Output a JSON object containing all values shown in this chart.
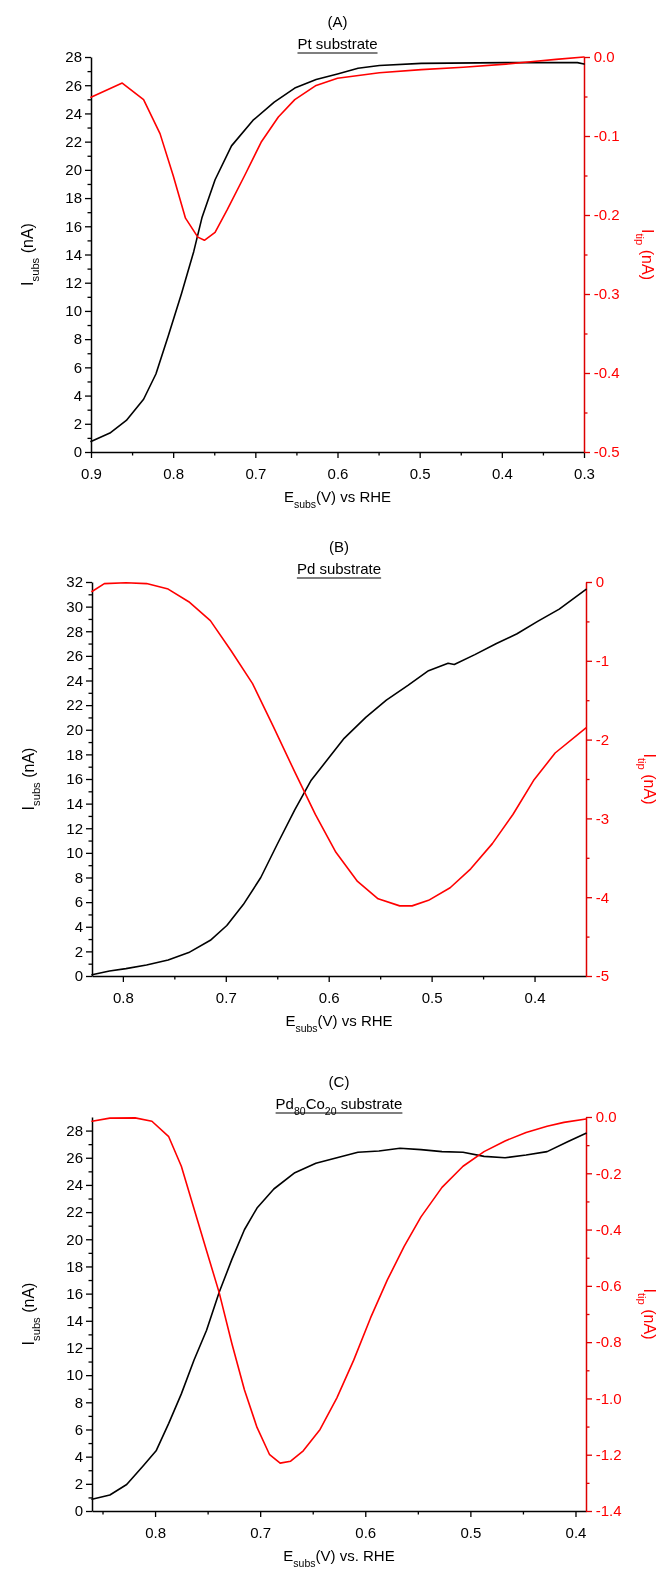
{
  "chart_data": [
    {
      "type": "line",
      "title": "(A)",
      "subtitle": "Pt substrate",
      "xlabel": "E$_{subs}$(V) vs RHE",
      "ylabel": "I$_{subs}$ (nA)",
      "y2label": "I$_{tip}$ (nA)",
      "xlim": [
        0.9,
        0.3
      ],
      "ylim": [
        0,
        28
      ],
      "y2lim": [
        -0.5,
        0
      ],
      "xticks": [
        0.9,
        {
          "value": 0.85,
          "label": null
        },
        0.8,
        {
          "value": 0.75,
          "label": null
        },
        0.7,
        {
          "value": 0.65,
          "label": null
        },
        0.6,
        {
          "value": 0.55,
          "label": null
        },
        0.5,
        {
          "value": 0.45,
          "label": null
        },
        0.4,
        {
          "value": 0.35,
          "label": null
        },
        0.3
      ],
      "yticks": [
        0,
        {
          "value": 1,
          "label": null
        },
        2,
        {
          "value": 3,
          "label": null
        },
        4,
        {
          "value": 5,
          "label": null
        },
        6,
        {
          "value": 7,
          "label": null
        },
        8,
        {
          "value": 9,
          "label": null
        },
        10,
        {
          "value": 11,
          "label": null
        },
        12,
        {
          "value": 13,
          "label": null
        },
        14,
        {
          "value": 15,
          "label": null
        },
        16,
        {
          "value": 17,
          "label": null
        },
        18,
        {
          "value": 19,
          "label": null
        },
        20,
        {
          "value": 21,
          "label": null
        },
        22,
        {
          "value": 23,
          "label": null
        },
        24,
        {
          "value": 25,
          "label": null
        },
        26,
        {
          "value": 27,
          "label": null
        },
        28
      ],
      "y2ticks": [
        {
          "value": 0,
          "label": "0.0"
        },
        {
          "value": -0.05,
          "label": null
        },
        -0.1,
        {
          "value": -0.15,
          "label": null
        },
        -0.2,
        {
          "value": -0.25,
          "label": null
        },
        -0.3,
        {
          "value": -0.35,
          "label": null
        },
        -0.4,
        {
          "value": -0.45,
          "label": null
        },
        -0.5
      ],
      "series": [
        {
          "color": "#000000",
          "x": [
            0.9,
            0.877,
            0.857,
            0.836,
            0.821,
            0.806,
            0.79,
            0.775,
            0.765,
            0.749,
            0.729,
            0.703,
            0.677,
            0.652,
            0.626,
            0.6,
            0.575,
            0.549,
            0.498,
            0.395,
            0.308,
            0.3
          ],
          "values": [
            0.75,
            1.34,
            2.24,
            3.74,
            5.53,
            8.22,
            11.2,
            14.2,
            16.6,
            19.3,
            21.7,
            23.5,
            24.8,
            25.8,
            26.4,
            26.8,
            27.2,
            27.4,
            27.55,
            27.6,
            27.6,
            27.5
          ]
        },
        {
          "color": "#ff0000",
          "axis": "y2",
          "x": [
            0.9,
            0.862,
            0.836,
            0.816,
            0.8,
            0.785,
            0.77,
            0.762,
            0.749,
            0.734,
            0.713,
            0.693,
            0.672,
            0.652,
            0.626,
            0.6,
            0.549,
            0.498,
            0.447,
            0.395,
            0.365,
            0.334,
            0.3
          ],
          "values": [
            -0.051,
            -0.033,
            -0.054,
            -0.097,
            -0.15,
            -0.204,
            -0.228,
            -0.232,
            -0.222,
            -0.193,
            -0.15,
            -0.108,
            -0.076,
            -0.054,
            -0.036,
            -0.027,
            -0.02,
            -0.016,
            -0.013,
            -0.009,
            -0.006,
            -0.003,
            0
          ]
        }
      ]
    },
    {
      "type": "line",
      "title": "(B)",
      "subtitle": "Pd substrate",
      "xlabel": "E$_{subs}$(V) vs RHE",
      "ylabel": "I$_{subs}$ (nA)",
      "y2label": "I$_{tip}$ (nA)",
      "xlim": [
        0.83,
        0.35
      ],
      "ylim": [
        0,
        32
      ],
      "y2lim": [
        -5,
        0
      ],
      "xticks": [
        0.8,
        {
          "value": 0.75,
          "label": null
        },
        0.7,
        {
          "value": 0.65,
          "label": null
        },
        0.6,
        {
          "value": 0.55,
          "label": null
        },
        0.5,
        {
          "value": 0.45,
          "label": null
        },
        0.4
      ],
      "yticks": [
        0,
        {
          "value": 1,
          "label": null
        },
        2,
        {
          "value": 3,
          "label": null
        },
        4,
        {
          "value": 5,
          "label": null
        },
        6,
        {
          "value": 7,
          "label": null
        },
        8,
        {
          "value": 9,
          "label": null
        },
        10,
        {
          "value": 11,
          "label": null
        },
        12,
        {
          "value": 13,
          "label": null
        },
        14,
        {
          "value": 15,
          "label": null
        },
        16,
        {
          "value": 17,
          "label": null
        },
        18,
        {
          "value": 19,
          "label": null
        },
        20,
        {
          "value": 21,
          "label": null
        },
        22,
        {
          "value": 23,
          "label": null
        },
        24,
        {
          "value": 25,
          "label": null
        },
        26,
        {
          "value": 27,
          "label": null
        },
        28,
        {
          "value": 29,
          "label": null
        },
        30,
        {
          "value": 31,
          "label": null
        },
        32
      ],
      "y2ticks": [
        0,
        {
          "value": -0.5,
          "label": null
        },
        -1,
        {
          "value": -1.5,
          "label": null
        },
        -2,
        {
          "value": -2.5,
          "label": null
        },
        -3,
        {
          "value": -3.5,
          "label": null
        },
        -4,
        {
          "value": -4.5,
          "label": null
        },
        -5
      ],
      "series": [
        {
          "color": "#000000",
          "x": [
            0.83,
            0.813,
            0.797,
            0.777,
            0.756,
            0.736,
            0.715,
            0.699,
            0.683,
            0.666,
            0.65,
            0.633,
            0.617,
            0.601,
            0.585,
            0.564,
            0.544,
            0.523,
            0.503,
            0.484,
            0.478,
            0.458,
            0.437,
            0.417,
            0.397,
            0.376,
            0.35
          ],
          "values": [
            0.1,
            0.4,
            0.6,
            0.9,
            1.3,
            1.9,
            2.9,
            4.1,
            5.8,
            8,
            10.7,
            13.5,
            15.9,
            17.6,
            19.3,
            21,
            22.4,
            23.6,
            24.8,
            25.4,
            25.3,
            26.1,
            27,
            27.8,
            28.8,
            29.8,
            31.4
          ]
        },
        {
          "color": "#ff0000",
          "axis": "y2",
          "x": [
            0.83,
            0.818,
            0.797,
            0.777,
            0.756,
            0.736,
            0.715,
            0.695,
            0.674,
            0.654,
            0.633,
            0.613,
            0.593,
            0.572,
            0.552,
            0.531,
            0.519,
            0.503,
            0.482,
            0.462,
            0.441,
            0.421,
            0.401,
            0.38,
            0.35
          ],
          "values": [
            -0.12,
            -0.02,
            -0.01,
            -0.02,
            -0.09,
            -0.25,
            -0.49,
            -0.87,
            -1.29,
            -1.83,
            -2.41,
            -2.95,
            -3.43,
            -3.8,
            -4.02,
            -4.11,
            -4.11,
            -4.04,
            -3.88,
            -3.64,
            -3.32,
            -2.95,
            -2.52,
            -2.17,
            -1.85
          ]
        }
      ]
    },
    {
      "type": "line",
      "title": "(C)",
      "subtitle": "Pd$_{80}$Co$_{20}$ substrate",
      "xlabel": "E$_{subs}$(V) vs. RHE",
      "ylabel": "I$_{subs}$ (nA)",
      "y2label": "I$_{tip}$ (nA)",
      "xlim": [
        0.86,
        0.39
      ],
      "ylim": [
        0,
        29
      ],
      "y2lim": [
        -1.4,
        0
      ],
      "xticks": [
        {
          "value": 0.85,
          "label": null
        },
        0.8,
        {
          "value": 0.75,
          "label": null
        },
        0.7,
        {
          "value": 0.65,
          "label": null
        },
        0.6,
        {
          "value": 0.55,
          "label": null
        },
        0.5,
        {
          "value": 0.45,
          "label": null
        },
        0.4
      ],
      "yticks": [
        0,
        {
          "value": 1,
          "label": null
        },
        2,
        {
          "value": 3,
          "label": null
        },
        4,
        {
          "value": 5,
          "label": null
        },
        6,
        {
          "value": 7,
          "label": null
        },
        8,
        {
          "value": 9,
          "label": null
        },
        10,
        {
          "value": 11,
          "label": null
        },
        12,
        {
          "value": 13,
          "label": null
        },
        14,
        {
          "value": 15,
          "label": null
        },
        16,
        {
          "value": 17,
          "label": null
        },
        18,
        {
          "value": 19,
          "label": null
        },
        20,
        {
          "value": 21,
          "label": null
        },
        22,
        {
          "value": 23,
          "label": null
        },
        24,
        {
          "value": 25,
          "label": null
        },
        26,
        {
          "value": 27,
          "label": null
        },
        28
      ],
      "y2ticks": [
        {
          "value": 0,
          "label": "0.0"
        },
        {
          "value": -0.1,
          "label": null
        },
        -0.2,
        {
          "value": -0.3,
          "label": null
        },
        -0.4,
        {
          "value": -0.5,
          "label": null
        },
        -0.6,
        {
          "value": -0.7,
          "label": null
        },
        -0.8,
        {
          "value": -0.9,
          "label": null
        },
        {
          "value": -1,
          "label": "-1.0"
        },
        {
          "value": -1.1,
          "label": null
        },
        -1.2,
        {
          "value": -1.3,
          "label": null
        },
        -1.4
      ],
      "series": [
        {
          "color": "#000000",
          "x": [
            0.86,
            0.843,
            0.827,
            0.811,
            0.799,
            0.787,
            0.775,
            0.763,
            0.751,
            0.739,
            0.727,
            0.715,
            0.703,
            0.687,
            0.667,
            0.647,
            0.627,
            0.607,
            0.587,
            0.567,
            0.547,
            0.527,
            0.507,
            0.487,
            0.467,
            0.447,
            0.427,
            0.407,
            0.39
          ],
          "values": [
            0.87,
            1.18,
            1.95,
            3.35,
            4.43,
            6.45,
            8.62,
            11.1,
            13.3,
            16.1,
            18.5,
            20.7,
            22.3,
            23.7,
            24.9,
            25.6,
            26,
            26.4,
            26.5,
            26.7,
            26.6,
            26.45,
            26.4,
            26.1,
            26,
            26.2,
            26.45,
            27.2,
            27.8
          ]
        },
        {
          "color": "#ff0000",
          "axis": "y2",
          "x": [
            0.86,
            0.843,
            0.819,
            0.803,
            0.787,
            0.775,
            0.763,
            0.751,
            0.739,
            0.727,
            0.715,
            0.703,
            0.691,
            0.681,
            0.671,
            0.659,
            0.643,
            0.627,
            0.611,
            0.595,
            0.579,
            0.563,
            0.547,
            0.527,
            0.507,
            0.487,
            0.467,
            0.447,
            0.427,
            0.411,
            0.39
          ],
          "values": [
            -0.015,
            -0.004,
            -0.003,
            -0.015,
            -0.07,
            -0.175,
            -0.325,
            -0.475,
            -0.624,
            -0.804,
            -0.969,
            -1.103,
            -1.2,
            -1.23,
            -1.223,
            -1.186,
            -1.11,
            -0.998,
            -0.864,
            -0.714,
            -0.579,
            -0.46,
            -0.355,
            -0.25,
            -0.175,
            -0.123,
            -0.085,
            -0.055,
            -0.033,
            -0.019,
            -0.007
          ]
        }
      ]
    }
  ]
}
